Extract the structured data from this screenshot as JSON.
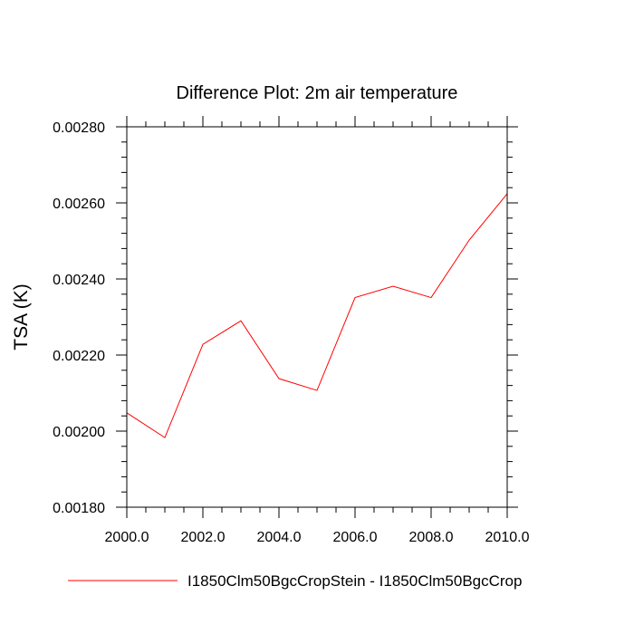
{
  "chart_data": {
    "type": "line",
    "title": "Difference Plot: 2m air temperature",
    "xlabel": "",
    "ylabel": "TSA  (K)",
    "xlim": [
      2000,
      2010
    ],
    "ylim": [
      0.0018,
      0.0028
    ],
    "x_ticks": [
      "2000.0",
      "2002.0",
      "2004.0",
      "2006.0",
      "2008.0",
      "2010.0"
    ],
    "y_ticks": [
      "0.00180",
      "0.00200",
      "0.00220",
      "0.00240",
      "0.00260",
      "0.00280"
    ],
    "legend_position": "bottom",
    "grid": false,
    "series": [
      {
        "name": "I1850Clm50BgcCropStein - I1850Clm50BgcCrop",
        "color": "#ff0000",
        "x": [
          2000,
          2001,
          2002,
          2003,
          2004,
          2005,
          2006,
          2007,
          2008,
          2009,
          2010
        ],
        "values": [
          0.002048,
          0.001983,
          0.002228,
          0.00229,
          0.002138,
          0.002107,
          0.002351,
          0.002381,
          0.002351,
          0.002502,
          0.002624
        ]
      }
    ]
  }
}
